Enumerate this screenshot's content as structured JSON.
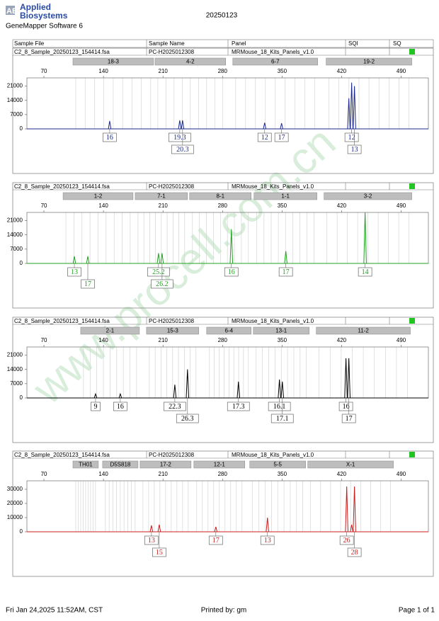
{
  "header": {
    "logo_mark": "AB",
    "brand": [
      "Applied",
      "Biosystems"
    ],
    "date": "20250123",
    "software": "GeneMapper Software 6"
  },
  "columns": [
    "Sample File",
    "Sample Name",
    "Panel",
    "SQI",
    "SQ"
  ],
  "watermark": "www.procell.com.cn",
  "chart_data": [
    {
      "type": "line",
      "sample_file": "C2_8_Sample_20250123_154414.fsa",
      "sample_name": "PC-H2025012308",
      "panel": "MRMouse_18_Kits_Panels_v1.0",
      "color": "#1c2a8a",
      "xlim": [
        50,
        522
      ],
      "xticks": [
        70,
        140,
        210,
        280,
        350,
        420,
        490
      ],
      "ylim": [
        0,
        25000
      ],
      "yticks": [
        0,
        7000,
        14000,
        21000
      ],
      "markers": [
        {
          "name": "18-3",
          "start": 104.1,
          "end": 198.9
        },
        {
          "name": "4-2",
          "start": 200.6,
          "end": 283.7
        },
        {
          "name": "6-7",
          "start": 292.1,
          "end": 391.9
        },
        {
          "name": "19-2",
          "start": 401.8,
          "end": 502.5
        }
      ],
      "x": [
        147.3,
        229.7,
        233.0,
        329.5,
        349.4,
        428.5,
        431.8,
        435.1
      ],
      "values": [
        3900,
        4200,
        4200,
        3000,
        2800,
        15000,
        22700,
        21000
      ],
      "alleles": [
        "16",
        "19.3",
        "20.3",
        "12",
        "17",
        null,
        "12",
        "13"
      ]
    },
    {
      "type": "line",
      "sample_file": "C2_8_Sample_20250123_154414.fsa",
      "sample_name": "PC-H2025012308",
      "panel": "MRMouse_18_Kits_Panels_v1.0",
      "color": "#22a022",
      "xlim": [
        50,
        522
      ],
      "xticks": [
        70,
        140,
        210,
        280,
        350,
        420,
        490
      ],
      "ylim": [
        0,
        25000
      ],
      "yticks": [
        0,
        7000,
        14000,
        21000
      ],
      "markers": [
        {
          "name": "1-2",
          "start": 92.5,
          "end": 174.8
        },
        {
          "name": "7-1",
          "start": 177.3,
          "end": 238.8
        },
        {
          "name": "8-1",
          "start": 241.3,
          "end": 313.7
        },
        {
          "name": "1-1",
          "start": 317.0,
          "end": 391.0
        },
        {
          "name": "3-2",
          "start": 399.3,
          "end": 502.5
        }
      ],
      "x": [
        105.8,
        121.6,
        204.7,
        208.9,
        290.4,
        354.4,
        447.6
      ],
      "values": [
        3500,
        3500,
        5000,
        5000,
        16800,
        6000,
        25000
      ],
      "alleles": [
        "13",
        "17",
        "25.2",
        "26.2",
        "16",
        "17",
        "14"
      ]
    },
    {
      "type": "line",
      "sample_file": "C2_8_Sample_20250123_154414.fsa",
      "sample_name": "PC-H2025012308",
      "panel": "MRMouse_18_Kits_Panels_v1.0",
      "color": "#000000",
      "xlim": [
        50,
        522
      ],
      "xticks": [
        70,
        140,
        210,
        280,
        350,
        420,
        490
      ],
      "ylim": [
        0,
        25000
      ],
      "yticks": [
        0,
        7000,
        14000,
        21000
      ],
      "markers": [
        {
          "name": "2-1",
          "start": 113.2,
          "end": 182.3
        },
        {
          "name": "15-3",
          "start": 190.6,
          "end": 252.1
        },
        {
          "name": "6-4",
          "start": 261.3,
          "end": 313.7
        },
        {
          "name": "13-1",
          "start": 316.2,
          "end": 381.9
        },
        {
          "name": "11-2",
          "start": 390.2,
          "end": 500.8
        }
      ],
      "x": [
        130.7,
        159.8,
        223.9,
        238.8,
        298.7,
        346.9,
        350.3,
        425.1,
        428.5
      ],
      "values": [
        2000,
        2000,
        6500,
        14000,
        8000,
        9000,
        8000,
        19500,
        19500
      ],
      "alleles": [
        "9",
        "16",
        "22.3",
        "26.3",
        "17.3",
        "16.1",
        "17.1",
        "16",
        "17"
      ]
    },
    {
      "type": "line",
      "sample_file": "C2_8_Sample_20250123_154414.fsa",
      "sample_name": "PC-H2025012308",
      "panel": "MRMouse_18_Kits_Panels_v1.0",
      "color": "#c81e1e",
      "xlim": [
        50,
        522
      ],
      "xticks": [
        70,
        140,
        210,
        280,
        350,
        420,
        490
      ],
      "ylim": [
        0,
        36000
      ],
      "yticks": [
        0,
        10000,
        20000,
        30000
      ],
      "markers": [
        {
          "name": "TH01",
          "start": 104.1,
          "end": 134.0
        },
        {
          "name": "D5S818",
          "start": 139.0,
          "end": 180.6
        },
        {
          "name": "17-2",
          "start": 183.1,
          "end": 243.0
        },
        {
          "name": "12-1",
          "start": 246.3,
          "end": 306.2
        },
        {
          "name": "5-5",
          "start": 312.0,
          "end": 377.7
        },
        {
          "name": "X-1",
          "start": 380.2,
          "end": 480.9
        }
      ],
      "x": [
        196.4,
        205.6,
        272.1,
        332.8,
        426.0,
        431.8,
        435.1
      ],
      "values": [
        4500,
        5000,
        3500,
        10000,
        32000,
        5000,
        32000
      ],
      "alleles": [
        "13",
        "15",
        "17",
        "13",
        "26",
        null,
        "28"
      ]
    }
  ],
  "footer": {
    "printed_at": "Fri Jan 24,2025 11:52AM, CST",
    "printed_by": "Printed by: gm",
    "page": "Page 1 of 1"
  }
}
